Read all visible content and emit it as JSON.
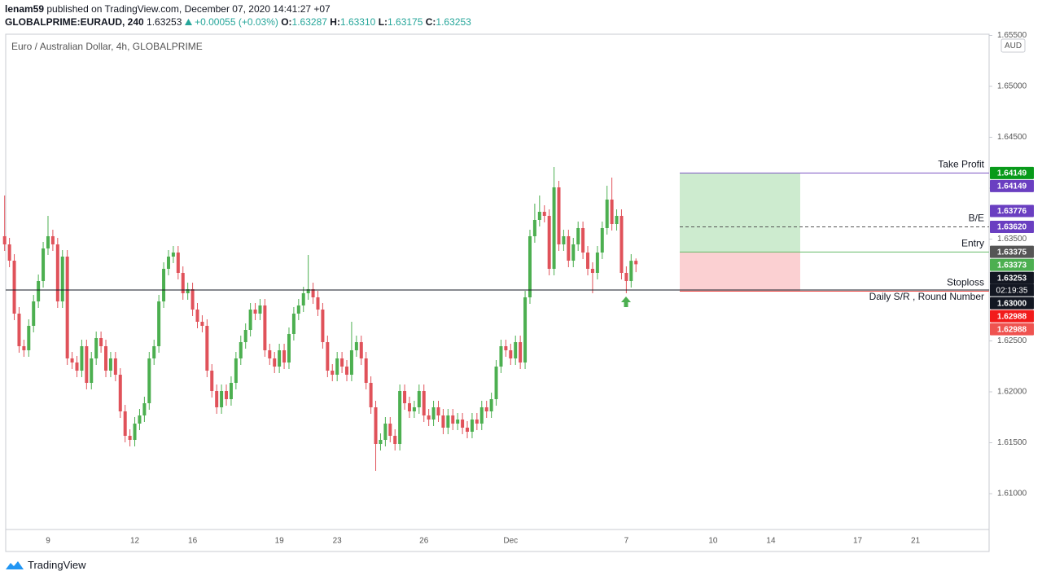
{
  "header": {
    "author": "lenam59",
    "published": "published on TradingView.com, December 07, 2020 14:41:27 +07",
    "symbol": "GLOBALPRIME:EURAUD, 240",
    "last": "1.63253",
    "change": "+0.00055 (+0.03%)",
    "ohlc": [
      {
        "label": "O:",
        "value": "1.63287"
      },
      {
        "label": "H:",
        "value": "1.63310"
      },
      {
        "label": "L:",
        "value": "1.63175"
      },
      {
        "label": "C:",
        "value": "1.63253"
      }
    ]
  },
  "footer": {
    "brand": "TradingView"
  },
  "chart_data": {
    "type": "candlestick",
    "title": "Euro / Australian Dollar, 4h, GLOBALPRIME",
    "currency": "AUD",
    "up_color": "#4caf50",
    "down_color": "#e0525a",
    "ylim": [
      1.60648,
      1.65512
    ],
    "yticks": [
      {
        "value": 1.655,
        "label": "1.65500"
      },
      {
        "value": 1.65,
        "label": "1.65000"
      },
      {
        "value": 1.645,
        "label": "1.64500"
      },
      {
        "value": 1.64,
        "label": "1.64000"
      },
      {
        "value": 1.635,
        "label": "1.63500"
      },
      {
        "value": 1.63,
        "label": "1.63000"
      },
      {
        "value": 1.625,
        "label": "1.62500"
      },
      {
        "value": 1.62,
        "label": "1.62000"
      },
      {
        "value": 1.615,
        "label": "1.61500"
      },
      {
        "value": 1.61,
        "label": "1.61000"
      }
    ],
    "grid": false,
    "categories": [
      null,
      null,
      null,
      null,
      null,
      null,
      null,
      null,
      null,
      "9",
      null,
      null,
      null,
      null,
      null,
      null,
      null,
      null,
      null,
      null,
      null,
      null,
      null,
      null,
      null,
      null,
      null,
      "12",
      null,
      null,
      null,
      null,
      null,
      null,
      null,
      null,
      null,
      null,
      null,
      "16",
      null,
      null,
      null,
      null,
      null,
      null,
      null,
      null,
      null,
      null,
      null,
      null,
      null,
      null,
      null,
      null,
      null,
      "19",
      null,
      null,
      null,
      null,
      null,
      null,
      null,
      null,
      null,
      null,
      null,
      "23",
      null,
      null,
      null,
      null,
      null,
      null,
      null,
      null,
      null,
      null,
      null,
      null,
      null,
      null,
      null,
      null,
      null,
      "26",
      null,
      null,
      null,
      null,
      null,
      null,
      null,
      null,
      null,
      null,
      null,
      null,
      null,
      null,
      null,
      null,
      null,
      "Dec",
      null,
      null,
      null,
      null,
      null,
      null,
      null,
      null,
      null,
      null,
      null,
      null,
      null,
      null,
      null,
      null,
      null,
      null,
      null,
      null,
      null,
      null,
      null,
      "7",
      null,
      null,
      null,
      null,
      null,
      null,
      null,
      null,
      null,
      null,
      null,
      null,
      null,
      null,
      null,
      null,
      null,
      "10",
      null,
      null,
      null,
      null,
      null,
      null,
      null,
      null,
      null,
      null,
      null,
      "14",
      null,
      null,
      null,
      null,
      null,
      null,
      null,
      null,
      null,
      null,
      null,
      null,
      null,
      null,
      null,
      null,
      null,
      "17",
      null,
      null,
      null,
      null,
      null,
      null,
      null,
      null,
      null,
      null,
      null,
      "21",
      null,
      null,
      null,
      null,
      null,
      null,
      null,
      null,
      null,
      null,
      null,
      null,
      null,
      null,
      null
    ],
    "open": [
      1.63528,
      1.63448,
      1.63288,
      1.62768,
      1.62448,
      1.62408,
      1.62648,
      1.62888,
      1.63088,
      1.63408,
      1.63528,
      1.63448,
      1.62888,
      1.63328,
      1.62328,
      1.62288,
      1.62208,
      1.62448,
      1.62088,
      1.62328,
      1.62528,
      1.62448,
      1.62208,
      1.62328,
      1.62168,
      1.61808,
      1.61568,
      1.61528,
      1.61688,
      1.61768,
      1.61888,
      1.62328,
      1.62448,
      1.62888,
      1.63208,
      1.63328,
      1.63368,
      1.63168,
      1.62968,
      1.63008,
      1.62808,
      1.62688,
      1.62648,
      1.62208,
      1.62008,
      1.61848,
      1.62008,
      1.61928,
      1.62088,
      1.62328,
      1.62488,
      1.62608,
      1.62808,
      1.62768,
      1.62848,
      1.62408,
      1.62328,
      1.62248,
      1.62408,
      1.62288,
      1.62568,
      1.62768,
      1.62848,
      1.62968,
      1.63008,
      1.62928,
      1.62808,
      1.62488,
      1.62208,
      1.62168,
      1.62328,
      1.62248,
      1.62168,
      1.62408,
      1.62488,
      1.62328,
      1.62088,
      1.61848,
      1.61488,
      1.61528,
      1.61688,
      1.61568,
      1.61488,
      1.62008,
      1.61888,
      1.61808,
      1.61848,
      1.62008,
      1.61768,
      1.61728,
      1.61848,
      1.61768,
      1.61648,
      1.61768,
      1.61688,
      1.61728,
      1.61648,
      1.61608,
      1.61728,
      1.61688,
      1.61848,
      1.61808,
      1.61928,
      1.62248,
      1.62448,
      1.62408,
      1.62328,
      1.62488,
      1.62288,
      1.62928,
      1.63528,
      1.63688,
      1.63768,
      1.63728,
      1.63208,
      1.64008,
      1.63448,
      1.63528,
      1.63288,
      1.63448,
      1.63608,
      1.63368,
      1.63208,
      1.63168,
      1.63368,
      1.63608,
      1.63888,
      1.63648,
      1.63728,
      1.63168,
      1.63088,
      1.63287,
      null,
      null,
      null,
      null,
      null,
      null,
      null,
      null,
      null,
      null,
      null,
      null,
      null,
      null,
      null,
      null,
      null,
      null,
      null,
      null,
      null,
      null,
      null,
      null,
      null,
      null,
      null,
      null,
      null,
      null,
      null,
      null,
      null,
      null,
      null,
      null,
      null,
      null,
      null,
      null,
      null,
      null,
      null,
      null,
      null,
      null,
      null,
      null,
      null,
      null,
      null,
      null,
      null,
      null,
      null,
      null,
      null,
      null,
      null,
      null,
      null,
      null,
      null,
      null,
      null,
      null,
      null,
      null,
      null,
      null,
      null,
      null,
      null
    ],
    "high": [
      1.63928,
      1.63512,
      1.63352,
      1.62832,
      1.62512,
      1.62712,
      1.62952,
      1.63152,
      1.63472,
      1.63728,
      1.63592,
      1.63512,
      1.63392,
      1.63392,
      1.62392,
      1.62352,
      1.62512,
      1.62512,
      1.62392,
      1.62592,
      1.62592,
      1.62512,
      1.62392,
      1.62392,
      1.62232,
      1.61872,
      1.61632,
      1.61752,
      1.61832,
      1.61952,
      1.62392,
      1.62512,
      1.62952,
      1.63272,
      1.63392,
      1.63432,
      1.63432,
      1.63232,
      1.63072,
      1.63072,
      1.62872,
      1.62752,
      1.62712,
      1.62272,
      1.62072,
      1.62072,
      1.62072,
      1.62152,
      1.62392,
      1.62552,
      1.62672,
      1.62872,
      1.62872,
      1.62912,
      1.62912,
      1.62472,
      1.62392,
      1.62472,
      1.62472,
      1.62632,
      1.62832,
      1.62912,
      1.63032,
      1.63344,
      1.63072,
      1.62992,
      1.62872,
      1.62552,
      1.62272,
      1.62392,
      1.62392,
      1.62312,
      1.62688,
      1.62552,
      1.62552,
      1.62392,
      1.62152,
      1.61912,
      1.61592,
      1.61752,
      1.61752,
      1.61632,
      1.62072,
      1.62072,
      1.61952,
      1.61912,
      1.62072,
      1.62072,
      1.61832,
      1.61912,
      1.61912,
      1.61832,
      1.61832,
      1.61832,
      1.61792,
      1.61792,
      1.61712,
      1.61792,
      1.61792,
      1.61912,
      1.61912,
      1.61992,
      1.62312,
      1.62512,
      1.62512,
      1.62472,
      1.62552,
      1.62552,
      1.62992,
      1.63592,
      1.63848,
      1.63928,
      1.63832,
      1.63792,
      1.64208,
      1.64072,
      1.63592,
      1.63592,
      1.63512,
      1.63672,
      1.63672,
      1.63432,
      1.63272,
      1.63432,
      1.63672,
      1.64024,
      1.64104,
      1.63792,
      1.63792,
      1.63232,
      1.63352,
      1.6331,
      null,
      null,
      null,
      null,
      null,
      null,
      null,
      null,
      null,
      null,
      null,
      null,
      null,
      null,
      null,
      null,
      null,
      null,
      null,
      null,
      null,
      null,
      null,
      null,
      null,
      null,
      null,
      null,
      null,
      null,
      null,
      null,
      null,
      null,
      null,
      null,
      null,
      null,
      null,
      null,
      null,
      null,
      null,
      null,
      null,
      null,
      null,
      null,
      null,
      null,
      null,
      null,
      null,
      null,
      null,
      null,
      null,
      null,
      null,
      null,
      null,
      null,
      null,
      null,
      null,
      null,
      null,
      null,
      null,
      null,
      null,
      null,
      null
    ],
    "low": [
      1.63384,
      1.63224,
      1.62704,
      1.62384,
      1.62344,
      1.62344,
      1.62584,
      1.62824,
      1.63024,
      1.63344,
      1.63384,
      1.62824,
      1.62824,
      1.62264,
      1.62224,
      1.62144,
      1.62144,
      1.62024,
      1.62024,
      1.62264,
      1.62384,
      1.62144,
      1.62144,
      1.62104,
      1.61744,
      1.61504,
      1.61464,
      1.61464,
      1.61624,
      1.61704,
      1.61824,
      1.62264,
      1.62384,
      1.62824,
      1.63144,
      1.63264,
      1.63104,
      1.62904,
      1.62904,
      1.62744,
      1.62624,
      1.62584,
      1.62144,
      1.61944,
      1.61784,
      1.61784,
      1.61864,
      1.61864,
      1.62024,
      1.62264,
      1.62424,
      1.62544,
      1.62704,
      1.62704,
      1.62344,
      1.62264,
      1.62184,
      1.62184,
      1.62224,
      1.62224,
      1.62504,
      1.62704,
      1.62784,
      1.62904,
      1.62864,
      1.62744,
      1.62424,
      1.62144,
      1.62104,
      1.62104,
      1.62184,
      1.62104,
      1.62104,
      1.62344,
      1.62264,
      1.62024,
      1.61784,
      1.61224,
      1.61424,
      1.61464,
      1.61504,
      1.61424,
      1.61424,
      1.61824,
      1.61744,
      1.61744,
      1.61784,
      1.61704,
      1.61664,
      1.61664,
      1.61704,
      1.61584,
      1.61584,
      1.61624,
      1.61624,
      1.61584,
      1.61544,
      1.61544,
      1.61624,
      1.61624,
      1.61744,
      1.61744,
      1.61864,
      1.62184,
      1.62344,
      1.62264,
      1.62264,
      1.62224,
      1.62224,
      1.62864,
      1.63464,
      1.63624,
      1.63664,
      1.63144,
      1.63144,
      1.63384,
      1.63384,
      1.63224,
      1.63224,
      1.63384,
      1.63304,
      1.63144,
      1.62968,
      1.63104,
      1.63304,
      1.63544,
      1.63584,
      1.63584,
      1.63104,
      1.62968,
      1.63024,
      1.63175,
      null,
      null,
      null,
      null,
      null,
      null,
      null,
      null,
      null,
      null,
      null,
      null,
      null,
      null,
      null,
      null,
      null,
      null,
      null,
      null,
      null,
      null,
      null,
      null,
      null,
      null,
      null,
      null,
      null,
      null,
      null,
      null,
      null,
      null,
      null,
      null,
      null,
      null,
      null,
      null,
      null,
      null,
      null,
      null,
      null,
      null,
      null,
      null,
      null,
      null,
      null,
      null,
      null,
      null,
      null,
      null,
      null,
      null,
      null,
      null,
      null,
      null,
      null,
      null,
      null,
      null,
      null,
      null,
      null,
      null,
      null,
      null,
      null
    ],
    "close": [
      1.63448,
      1.63288,
      1.62768,
      1.62448,
      1.62408,
      1.62648,
      1.62888,
      1.63088,
      1.63408,
      1.63528,
      1.63448,
      1.62888,
      1.63328,
      1.62328,
      1.62288,
      1.62208,
      1.62448,
      1.62088,
      1.62328,
      1.62528,
      1.62448,
      1.62208,
      1.62328,
      1.62168,
      1.61808,
      1.61568,
      1.61528,
      1.61688,
      1.61768,
      1.61888,
      1.62328,
      1.62448,
      1.62888,
      1.63208,
      1.63328,
      1.63368,
      1.63168,
      1.62968,
      1.63008,
      1.62808,
      1.62688,
      1.62648,
      1.62208,
      1.62008,
      1.61848,
      1.62008,
      1.61928,
      1.62088,
      1.62328,
      1.62488,
      1.62608,
      1.62808,
      1.62768,
      1.62848,
      1.62408,
      1.62328,
      1.62248,
      1.62408,
      1.62288,
      1.62568,
      1.62768,
      1.62848,
      1.62968,
      1.63008,
      1.62928,
      1.62808,
      1.62488,
      1.62208,
      1.62168,
      1.62328,
      1.62248,
      1.62168,
      1.62408,
      1.62488,
      1.62328,
      1.62088,
      1.61848,
      1.61488,
      1.61528,
      1.61688,
      1.61568,
      1.61488,
      1.62008,
      1.61888,
      1.61808,
      1.61848,
      1.62008,
      1.61768,
      1.61728,
      1.61848,
      1.61768,
      1.61648,
      1.61768,
      1.61688,
      1.61728,
      1.61648,
      1.61608,
      1.61728,
      1.61688,
      1.61848,
      1.61808,
      1.61928,
      1.62248,
      1.62448,
      1.62408,
      1.62328,
      1.62488,
      1.62288,
      1.62928,
      1.63528,
      1.63688,
      1.63768,
      1.63728,
      1.63208,
      1.64008,
      1.63448,
      1.63528,
      1.63288,
      1.63448,
      1.63608,
      1.63368,
      1.63208,
      1.63168,
      1.63368,
      1.63608,
      1.63888,
      1.63648,
      1.63728,
      1.63168,
      1.63088,
      1.63287,
      1.63253,
      null,
      null,
      null,
      null,
      null,
      null,
      null,
      null,
      null,
      null,
      null,
      null,
      null,
      null,
      null,
      null,
      null,
      null,
      null,
      null,
      null,
      null,
      null,
      null,
      null,
      null,
      null,
      null,
      null,
      null,
      null,
      null,
      null,
      null,
      null,
      null,
      null,
      null,
      null,
      null,
      null,
      null,
      null,
      null,
      null,
      null,
      null,
      null,
      null,
      null,
      null,
      null,
      null,
      null,
      null,
      null,
      null,
      null,
      null,
      null,
      null,
      null,
      null,
      null,
      null,
      null,
      null,
      null,
      null,
      null,
      null,
      null,
      null
    ],
    "position": {
      "target": 1.64149,
      "entry": 1.63375,
      "stop": 1.62988,
      "profit_color": "#cdebcf",
      "loss_color": "#fbd0d2"
    },
    "levels": [
      {
        "name": "Take Profit",
        "value": 1.64149,
        "color": "#7e57c2"
      },
      {
        "name": "B/E",
        "value": 1.6362,
        "color": "#555555",
        "dashed": true
      },
      {
        "name": "Entry",
        "value": 1.63373,
        "color": "#66bb6a"
      },
      {
        "name": "Stoploss",
        "value": 1.62988,
        "color": "#ef5350"
      },
      {
        "name": "Daily S/R , Round Number",
        "value": 1.63,
        "color": "#131722",
        "extend": "full"
      }
    ],
    "price_tags": [
      {
        "value": 1.64149,
        "color": "#089a1a"
      },
      {
        "value": 1.64149,
        "color": "#6a3fc1"
      },
      {
        "value": 1.63776,
        "color": "#6a3fc1"
      },
      {
        "value": 1.6362,
        "label": "1.63620",
        "color": "#6a3fc1"
      },
      {
        "value": 1.63375,
        "color": "#555555"
      },
      {
        "value": 1.63373,
        "color": "#4caf50"
      },
      {
        "value": 1.63253,
        "color": "#131722",
        "countdown": "02:19:35"
      },
      {
        "value": 1.63,
        "label": "1.63000",
        "color": "#131722"
      },
      {
        "value": 1.62988,
        "color": "#f21b1b"
      },
      {
        "value": 1.62988,
        "color": "#ef5350"
      }
    ]
  }
}
